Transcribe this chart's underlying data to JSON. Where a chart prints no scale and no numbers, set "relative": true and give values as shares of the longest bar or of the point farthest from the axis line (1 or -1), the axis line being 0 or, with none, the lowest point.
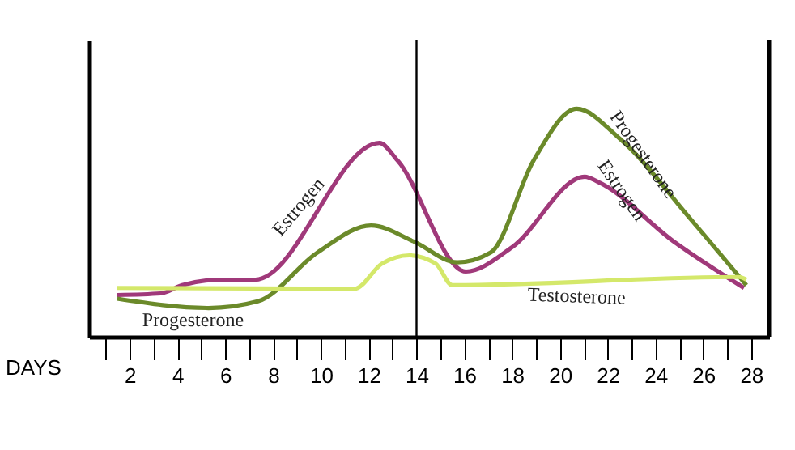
{
  "chart_data": {
    "type": "line",
    "relative": true,
    "xlabel": "DAYS",
    "xlim": [
      0.3,
      28.75
    ],
    "xticks": [
      {
        "value": 1,
        "label": null
      },
      2,
      {
        "value": 3,
        "label": null
      },
      4,
      {
        "value": 5,
        "label": null
      },
      6,
      {
        "value": 7,
        "label": null
      },
      8,
      {
        "value": 9,
        "label": null
      },
      10,
      {
        "value": 11,
        "label": null
      },
      12,
      {
        "value": 13,
        "label": null
      },
      14,
      {
        "value": 15,
        "label": null
      },
      16,
      {
        "value": 17,
        "label": null
      },
      18,
      {
        "value": 19,
        "label": null
      },
      20,
      {
        "value": 21,
        "label": null
      },
      22,
      {
        "value": 23,
        "label": null
      },
      24,
      {
        "value": 25,
        "label": null
      },
      26,
      {
        "value": 27,
        "label": null
      },
      28
    ],
    "grid": false,
    "legend": false,
    "marker": "none",
    "line_style": "solid",
    "ref_lines": [
      {
        "axis": "x",
        "value": 14,
        "color": "#000000"
      }
    ],
    "series": [
      {
        "name": "Estrogen",
        "color": "#a0397a",
        "x": [
          1.48,
          3.3,
          4.2,
          5.8,
          7.25,
          12.45,
          13.2,
          16.06,
          18,
          21.04,
          21.6,
          24.77,
          27.7
        ],
        "values": [
          0.183,
          0.19,
          0.226,
          0.25,
          0.25,
          0.85,
          0.774,
          0.286,
          0.393,
          0.702,
          0.679,
          0.417,
          0.214
        ]
      },
      {
        "name": "Progesterone",
        "color": "#6b8a2a",
        "x": [
          1.48,
          5.3,
          7.36,
          9.85,
          12.1,
          13.9,
          15.7,
          17.1,
          18.9,
          20.7,
          22.5,
          25.5,
          27.8
        ],
        "values": [
          0.167,
          0.126,
          0.155,
          0.369,
          0.488,
          0.417,
          0.326,
          0.369,
          0.774,
          1.0,
          0.869,
          0.512,
          0.226
        ]
      },
      {
        "name": "Testosterone",
        "color": "#d4e86a",
        "x": [
          1.48,
          11.4,
          12.56,
          13.7,
          14.8,
          15.5,
          27.5,
          27.8
        ],
        "values": [
          0.214,
          0.21,
          0.321,
          0.357,
          0.321,
          0.226,
          0.262,
          0.25
        ]
      }
    ],
    "annotations": [
      {
        "text": "Progesterone",
        "x": 23.5,
        "y": 0.8
      },
      {
        "text": "Estrogen",
        "x": 22.6,
        "y": 0.643
      }
    ]
  }
}
